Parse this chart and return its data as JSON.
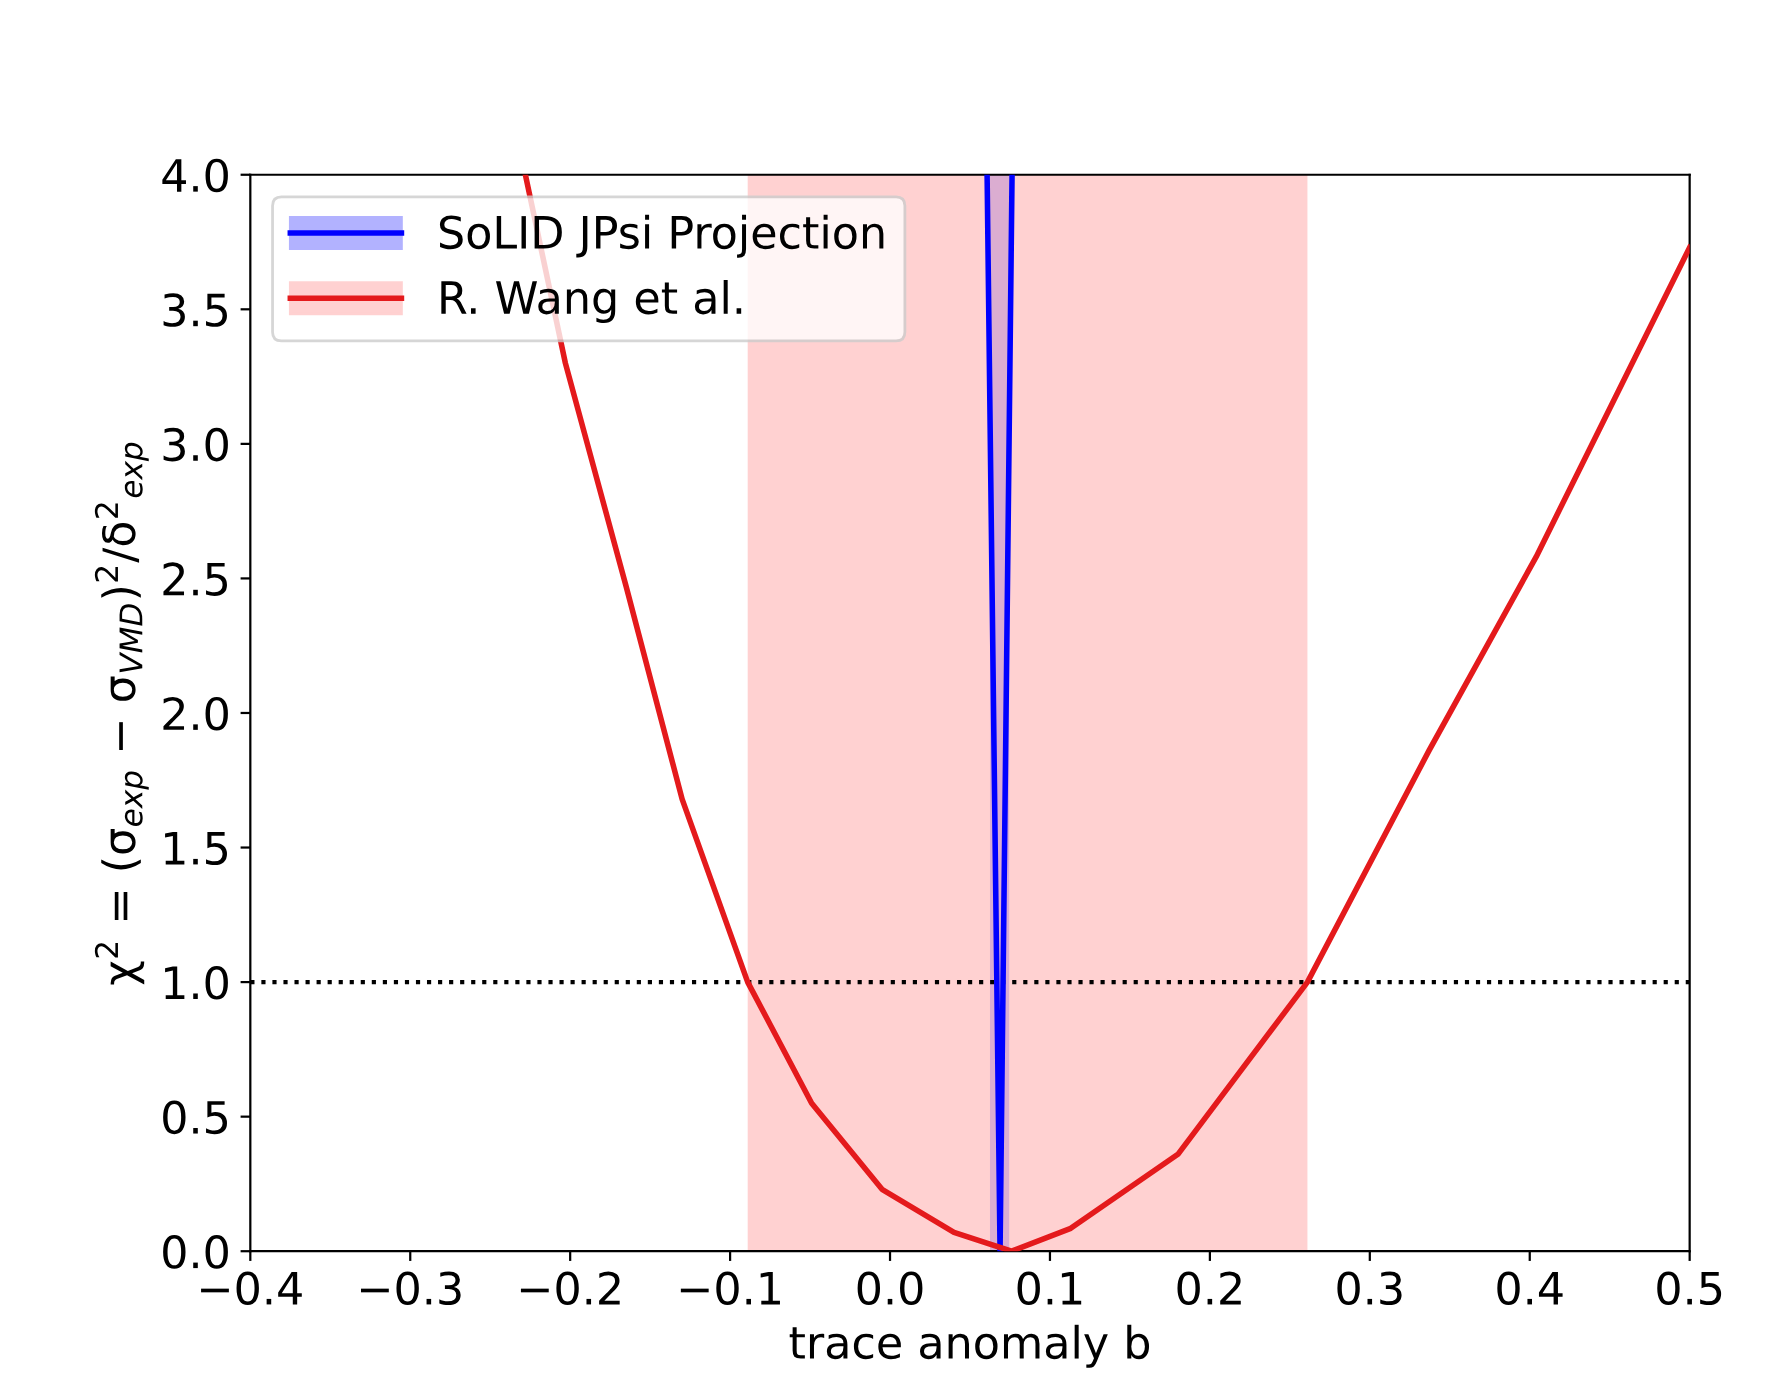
{
  "chart_data": {
    "type": "line",
    "xlabel": "trace anomaly b",
    "ylabel": "χ$^{2}$ = (σ$_{exp}$ − σ$_{VMD}$)$^{2}$/δ$^{2}$$_{exp}$",
    "xlim": [
      -0.4,
      0.5
    ],
    "ylim": [
      0.0,
      4.0
    ],
    "xticks": [
      {
        "value": -0.4,
        "label": "−0.4"
      },
      {
        "value": -0.3,
        "label": "−0.3"
      },
      {
        "value": -0.2,
        "label": "−0.2"
      },
      {
        "value": -0.1,
        "label": "−0.1"
      },
      {
        "value": 0.0,
        "label": "0.0"
      },
      0.1,
      0.2,
      0.3,
      0.4,
      0.5
    ],
    "yticks": [
      {
        "value": 0.0,
        "label": "0.0"
      },
      0.5,
      {
        "value": 1.0,
        "label": "1.0"
      },
      1.5,
      {
        "value": 2.0,
        "label": "2.0"
      },
      2.5,
      {
        "value": 3.0,
        "label": "3.0"
      },
      3.5,
      {
        "value": 4.0,
        "label": "4.0"
      }
    ],
    "series": [
      {
        "name": "SoLID JPsi Projection",
        "color": "#0000ff",
        "x": [
          0.0607,
          0.0688,
          0.0763
        ],
        "values": [
          4.0,
          0.0,
          4.0
        ]
      },
      {
        "name": "R. Wang et al.",
        "color": "#e41a1c",
        "x": [
          -0.228,
          -0.203,
          -0.165,
          -0.13,
          -0.089,
          -0.049,
          -0.005,
          0.04,
          0.076,
          0.113,
          0.18,
          0.261,
          0.337,
          0.404,
          0.5
        ],
        "values": [
          4.0,
          3.3,
          2.47,
          1.68,
          1.0,
          0.55,
          0.23,
          0.07,
          0.0,
          0.085,
          0.36,
          1.0,
          1.86,
          2.58,
          3.73
        ]
      }
    ],
    "bands": [
      {
        "axis": "x",
        "from": 0.0625,
        "to": 0.0745,
        "color": "#8080ff"
      },
      {
        "axis": "x",
        "from": -0.089,
        "to": 0.261,
        "color": "#ffb3b3"
      }
    ],
    "ref_lines": [
      {
        "axis": "y",
        "value": 1.0,
        "color": "#000000",
        "line_style": "dotted"
      }
    ],
    "legend": "top left",
    "grid": false,
    "marker": "none",
    "line_style": "solid"
  }
}
